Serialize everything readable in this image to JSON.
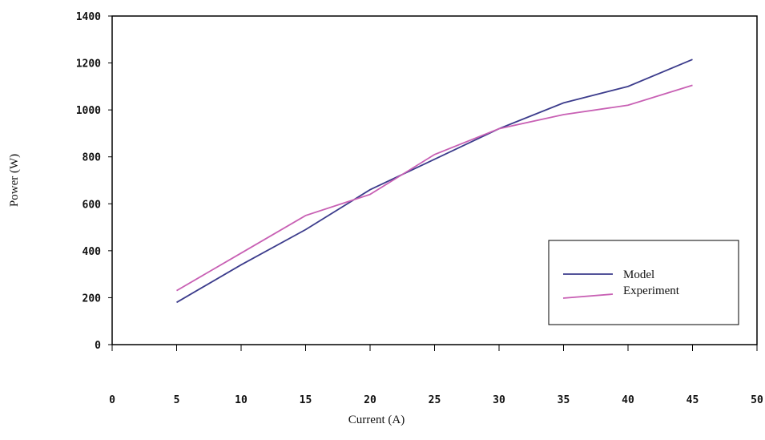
{
  "chart_data": {
    "type": "line",
    "x_label": "Current (A)",
    "y_label": "Power (W)",
    "x": [
      5,
      10,
      15,
      20,
      25,
      30,
      35,
      40,
      45
    ],
    "series": [
      {
        "name": "Model",
        "color": "#3c3c8c",
        "values": [
          180,
          340,
          490,
          660,
          790,
          920,
          1030,
          1100,
          1215
        ]
      },
      {
        "name": "Experiment",
        "color": "#c860b4",
        "values": [
          230,
          390,
          550,
          640,
          810,
          920,
          980,
          1020,
          1105
        ]
      }
    ],
    "xlim": [
      0,
      50
    ],
    "xticks": [
      0,
      5,
      10,
      15,
      20,
      25,
      30,
      35,
      40,
      45,
      50
    ],
    "ylim": [
      0,
      1400
    ],
    "yticks": [
      0,
      200,
      400,
      600,
      800,
      1000,
      1200,
      1400
    ],
    "legend": "lower-right"
  }
}
